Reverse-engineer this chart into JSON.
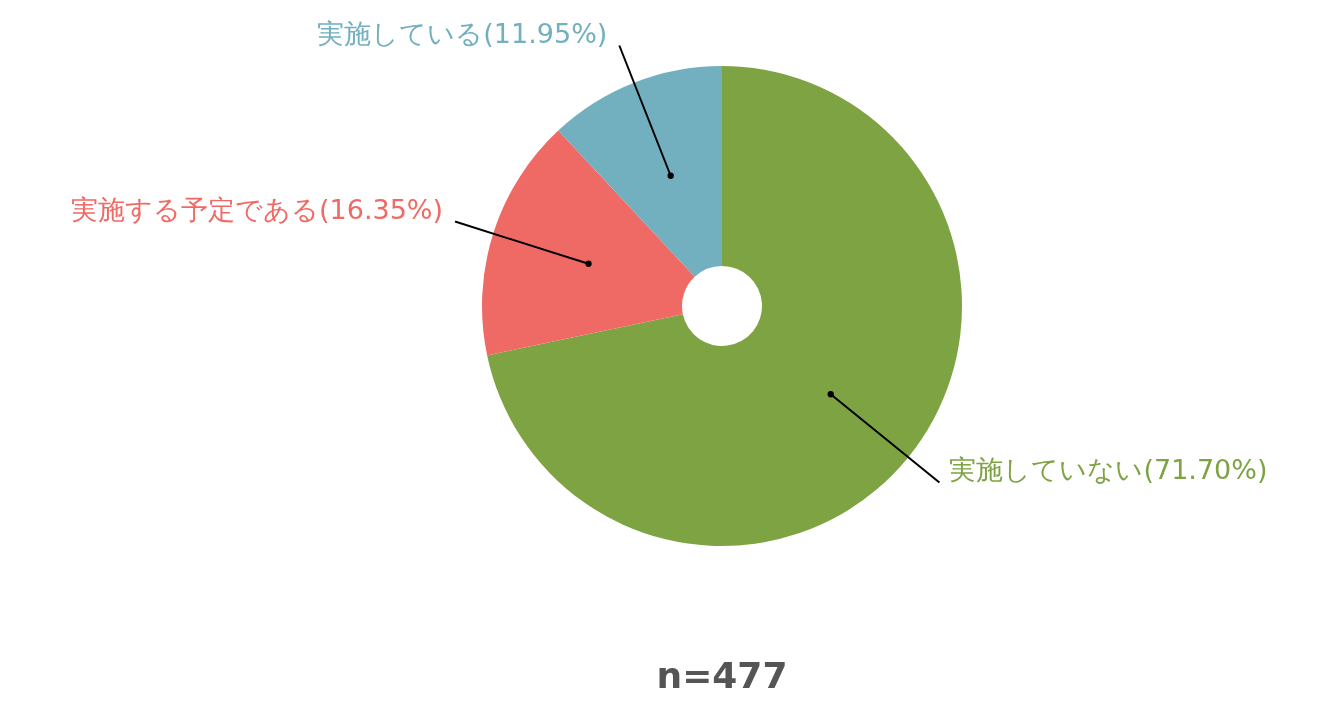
{
  "chart_data": {
    "type": "donut",
    "categories": [
      "実施していない",
      "実施する予定である",
      "実施している"
    ],
    "values": [
      71.7,
      16.35,
      11.95
    ],
    "colors": [
      "#7ea343",
      "#f06a65",
      "#72b0c0"
    ],
    "value_labels": [
      "(71.70%)",
      "(16.35%)",
      "(11.95%)"
    ],
    "annotations": [
      "n=477"
    ]
  }
}
